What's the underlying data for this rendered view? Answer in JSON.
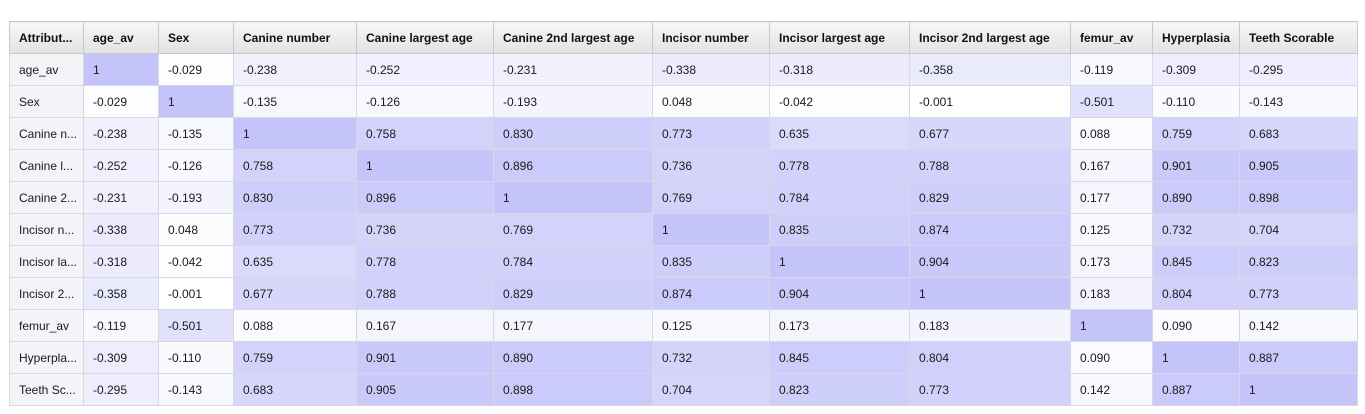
{
  "columns": [
    "Attribut...",
    "age_av",
    "Sex",
    "Canine number",
    "Canine largest age",
    "Canine 2nd largest age",
    "Incisor number",
    "Incisor largest age",
    "Incisor 2nd largest age",
    "femur_av",
    "Hyperplasia",
    "Teeth Scorable"
  ],
  "rows": [
    {
      "label": "age_av",
      "values": [
        "1",
        "-0.029",
        "-0.238",
        "-0.252",
        "-0.231",
        "-0.338",
        "-0.318",
        "-0.358",
        "-0.119",
        "-0.309",
        "-0.295"
      ]
    },
    {
      "label": "Sex",
      "values": [
        "-0.029",
        "1",
        "-0.135",
        "-0.126",
        "-0.193",
        "0.048",
        "-0.042",
        "-0.001",
        "-0.501",
        "-0.110",
        "-0.143"
      ]
    },
    {
      "label": "Canine n...",
      "values": [
        "-0.238",
        "-0.135",
        "1",
        "0.758",
        "0.830",
        "0.773",
        "0.635",
        "0.677",
        "0.088",
        "0.759",
        "0.683"
      ]
    },
    {
      "label": "Canine l...",
      "values": [
        "-0.252",
        "-0.126",
        "0.758",
        "1",
        "0.896",
        "0.736",
        "0.778",
        "0.788",
        "0.167",
        "0.901",
        "0.905"
      ]
    },
    {
      "label": "Canine 2...",
      "values": [
        "-0.231",
        "-0.193",
        "0.830",
        "0.896",
        "1",
        "0.769",
        "0.784",
        "0.829",
        "0.177",
        "0.890",
        "0.898"
      ]
    },
    {
      "label": "Incisor n...",
      "values": [
        "-0.338",
        "0.048",
        "0.773",
        "0.736",
        "0.769",
        "1",
        "0.835",
        "0.874",
        "0.125",
        "0.732",
        "0.704"
      ]
    },
    {
      "label": "Incisor la...",
      "values": [
        "-0.318",
        "-0.042",
        "0.635",
        "0.778",
        "0.784",
        "0.835",
        "1",
        "0.904",
        "0.173",
        "0.845",
        "0.823"
      ]
    },
    {
      "label": "Incisor 2...",
      "values": [
        "-0.358",
        "-0.001",
        "0.677",
        "0.788",
        "0.829",
        "0.874",
        "0.904",
        "1",
        "0.183",
        "0.804",
        "0.773"
      ]
    },
    {
      "label": "femur_av",
      "values": [
        "-0.119",
        "-0.501",
        "0.088",
        "0.167",
        "0.177",
        "0.125",
        "0.173",
        "0.183",
        "1",
        "0.090",
        "0.142"
      ]
    },
    {
      "label": "Hyperpla...",
      "values": [
        "-0.309",
        "-0.110",
        "0.759",
        "0.901",
        "0.890",
        "0.732",
        "0.845",
        "0.804",
        "0.090",
        "1",
        "0.887"
      ]
    },
    {
      "label": "Teeth Sc...",
      "values": [
        "-0.295",
        "-0.143",
        "0.683",
        "0.905",
        "0.898",
        "0.704",
        "0.823",
        "0.773",
        "0.142",
        "0.887",
        "1"
      ]
    }
  ],
  "colors": {
    "low": "#ffffff",
    "high": "#c4c4fa",
    "header": "#e6e6e6"
  }
}
